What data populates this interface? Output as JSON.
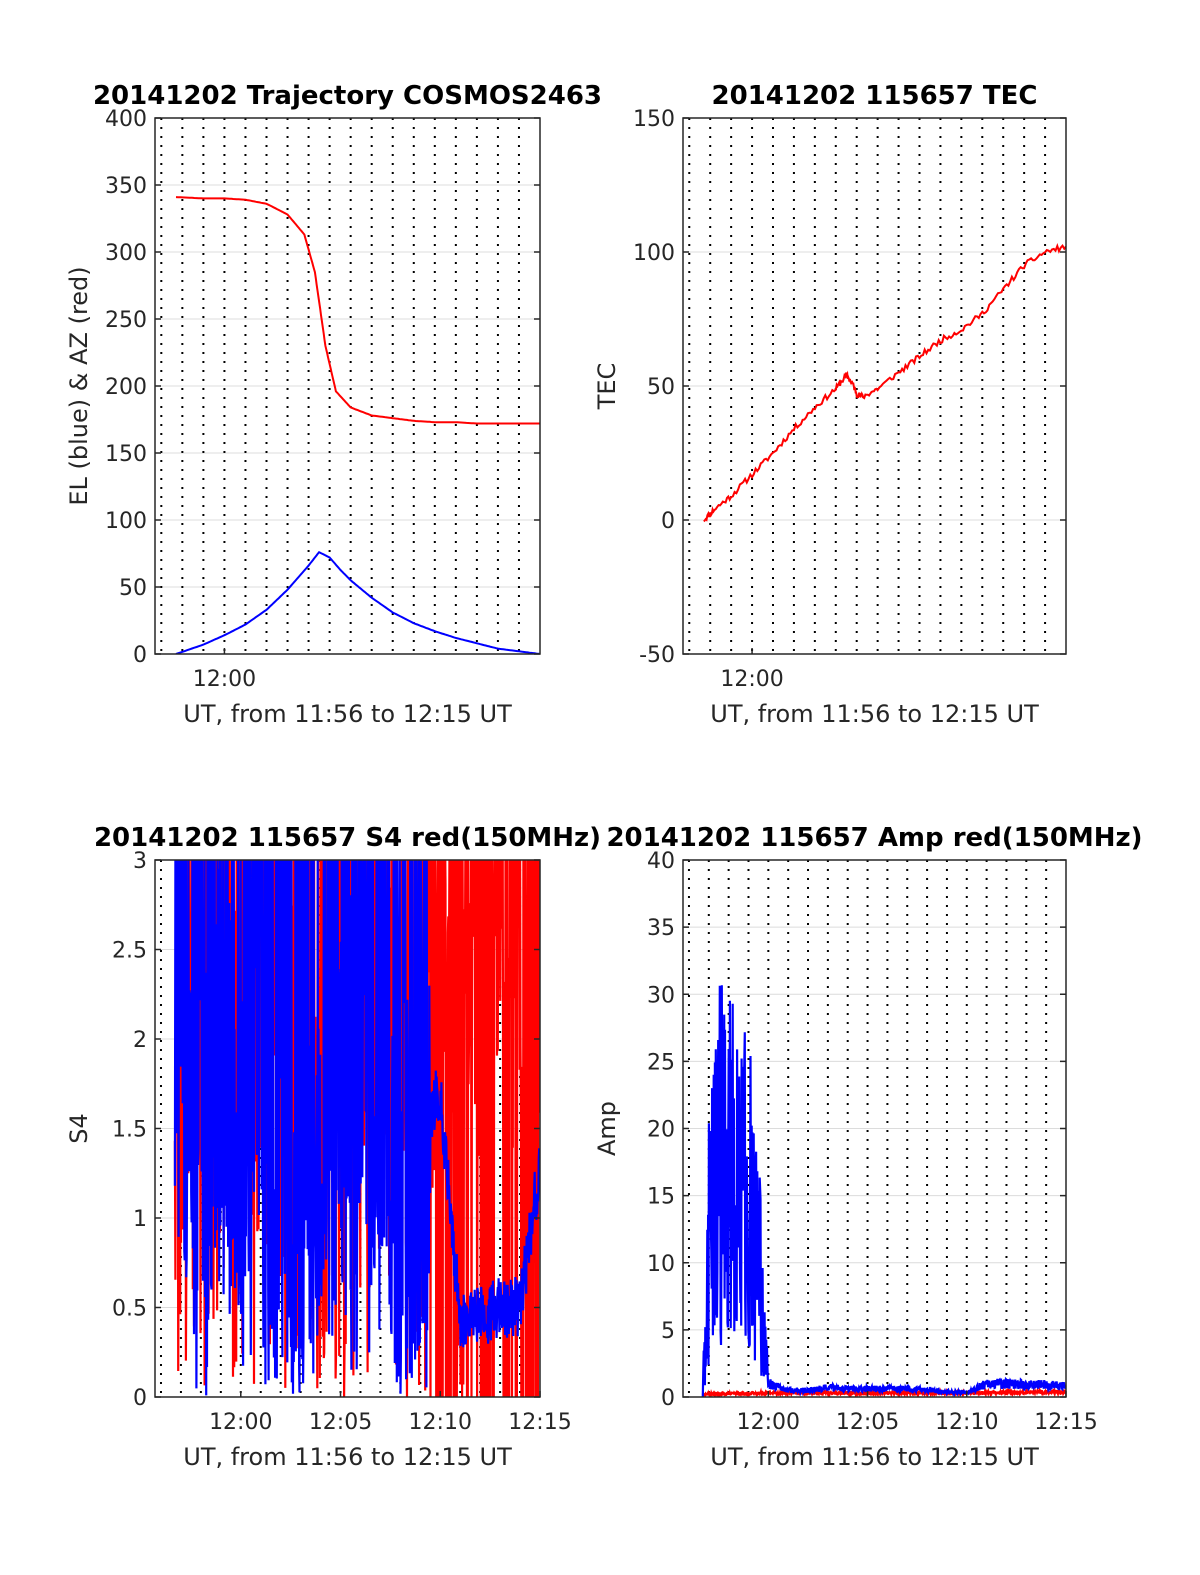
{
  "chart_data": [
    {
      "id": "trajectory",
      "type": "line",
      "title": "20141202 Trajectory COSMOS2463",
      "xlabel": "UT, from 11:56 to 12:15 UT",
      "ylabel": "EL (blue) & AZ (red)",
      "xlim": [
        -3.3,
        15
      ],
      "ylim": [
        0,
        400
      ],
      "yticks": [
        0,
        50,
        100,
        150,
        200,
        250,
        300,
        350,
        400
      ],
      "ytick_labels": [
        "0",
        "50",
        "100",
        "150",
        "200",
        "250",
        "300",
        "350",
        "400"
      ],
      "xticks": [
        0
      ],
      "xtick_labels": [
        "12:00"
      ],
      "grid": true,
      "series": [
        {
          "color": "#ff0000",
          "x": [
            -2.3,
            -1,
            0,
            1,
            2,
            3,
            3.8,
            4.3,
            4.8,
            5.3,
            6,
            7,
            8,
            9,
            10,
            11,
            12,
            13,
            14,
            15
          ],
          "values": [
            341,
            340,
            340,
            339,
            336,
            328,
            313,
            285,
            230,
            196,
            184,
            178,
            176,
            174,
            173,
            173,
            172,
            172,
            172,
            172
          ]
        },
        {
          "color": "#0000ff",
          "x": [
            -2.3,
            -1,
            0,
            1,
            2,
            3,
            4,
            4.5,
            5,
            5.5,
            6,
            7,
            8,
            9,
            10,
            11,
            12,
            13,
            14,
            15
          ],
          "values": [
            0,
            7,
            14,
            22,
            33,
            48,
            66,
            76,
            72,
            63,
            55,
            42,
            31,
            23,
            17,
            12,
            8,
            4,
            2,
            0
          ]
        }
      ]
    },
    {
      "id": "tec",
      "type": "line",
      "title": "20141202 115657 TEC",
      "xlabel": "UT, from 11:56 to 12:15 UT",
      "ylabel": "TEC",
      "xlim": [
        -3.3,
        15
      ],
      "ylim": [
        -50,
        150
      ],
      "yticks": [
        -50,
        0,
        50,
        100,
        150
      ],
      "ytick_labels": [
        "-50",
        "0",
        "50",
        "100",
        "150"
      ],
      "xticks": [
        0
      ],
      "xtick_labels": [
        "12:00"
      ],
      "grid": true,
      "series": [
        {
          "color": "#ff0000",
          "x": [
            -2.3,
            -1.8,
            -1,
            0,
            1,
            2,
            3,
            4,
            4.5,
            4.8,
            5,
            5.3,
            6,
            7,
            8,
            9,
            10,
            11,
            12,
            13,
            14,
            15
          ],
          "values": [
            0,
            4,
            9,
            17,
            25,
            34,
            42,
            49,
            54,
            51,
            47,
            46,
            49,
            55,
            61,
            67,
            71,
            77,
            86,
            95,
            100,
            102
          ]
        }
      ]
    },
    {
      "id": "s4",
      "type": "line",
      "title": "20141202 115657 S4 red(150MHz)",
      "xlabel": "UT, from 11:56 to 12:15 UT",
      "ylabel": "S4",
      "xlim": [
        -4.3,
        15
      ],
      "ylim": [
        0,
        3
      ],
      "yticks": [
        0,
        0.5,
        1,
        1.5,
        2,
        2.5,
        3
      ],
      "ytick_labels": [
        "0",
        "0.5",
        "1",
        "1.5",
        "2",
        "2.5",
        "3"
      ],
      "xticks": [
        0,
        5,
        10,
        15
      ],
      "xtick_labels": [
        "12:00",
        "12:05",
        "12:10",
        "12:15"
      ],
      "grid": true,
      "series": [
        {
          "color": "#ff0000",
          "x": [
            -3.3,
            -2,
            -1,
            0,
            1,
            2,
            3,
            4,
            5,
            6,
            7,
            8,
            9,
            10,
            11,
            12,
            13,
            14,
            15
          ],
          "values": [
            1.8,
            2.4,
            2.6,
            2.2,
            2.5,
            1.6,
            2.4,
            1.6,
            2.7,
            2.2,
            2.5,
            1.6,
            2.0,
            2.7,
            2.8,
            2.5,
            2.7,
            2.6,
            2.8
          ]
        },
        {
          "color": "#0000ff",
          "x": [
            -3.3,
            -2,
            -1,
            0,
            1,
            2,
            3,
            4,
            5,
            6,
            7,
            8,
            9,
            10,
            11,
            12,
            13,
            14,
            15
          ],
          "values": [
            2.0,
            1.5,
            1.8,
            1.6,
            1.9,
            0.9,
            1.0,
            1.3,
            1.4,
            2.0,
            1.8,
            1.1,
            1.5,
            1.7,
            0.45,
            0.45,
            0.5,
            0.5,
            1.3
          ]
        }
      ]
    },
    {
      "id": "amp",
      "type": "line",
      "title": "20141202 115657 Amp red(150MHz)",
      "xlabel": "UT, from 11:56 to 12:15 UT",
      "ylabel": "Amp",
      "xlim": [
        -4.3,
        15
      ],
      "ylim": [
        0,
        40
      ],
      "yticks": [
        0,
        5,
        10,
        15,
        20,
        25,
        30,
        35,
        40
      ],
      "ytick_labels": [
        "0",
        "5",
        "10",
        "15",
        "20",
        "25",
        "30",
        "35",
        "40"
      ],
      "xticks": [
        0,
        5,
        10,
        15
      ],
      "xtick_labels": [
        "12:00",
        "12:05",
        "12:10",
        "12:15"
      ],
      "grid": true,
      "series": [
        {
          "color": "#ff0000",
          "x": [
            -3.3,
            0,
            5,
            10,
            15
          ],
          "values": [
            0.2,
            0.3,
            0.3,
            0.3,
            0.4
          ]
        },
        {
          "color": "#0000ff",
          "x": [
            -3.3,
            -3,
            -2.5,
            -2,
            -1.5,
            -1,
            -0.5,
            0,
            1,
            2,
            3,
            4,
            5,
            6,
            7,
            8,
            9,
            10,
            11,
            12,
            13,
            14,
            15
          ],
          "values": [
            0,
            20,
            30,
            29,
            28,
            27,
            18,
            1,
            0.5,
            0.5,
            0.7,
            0.6,
            0.6,
            0.6,
            0.6,
            0.5,
            0.4,
            0.3,
            1.0,
            1.0,
            0.9,
            0.9,
            0.8
          ]
        }
      ]
    }
  ]
}
